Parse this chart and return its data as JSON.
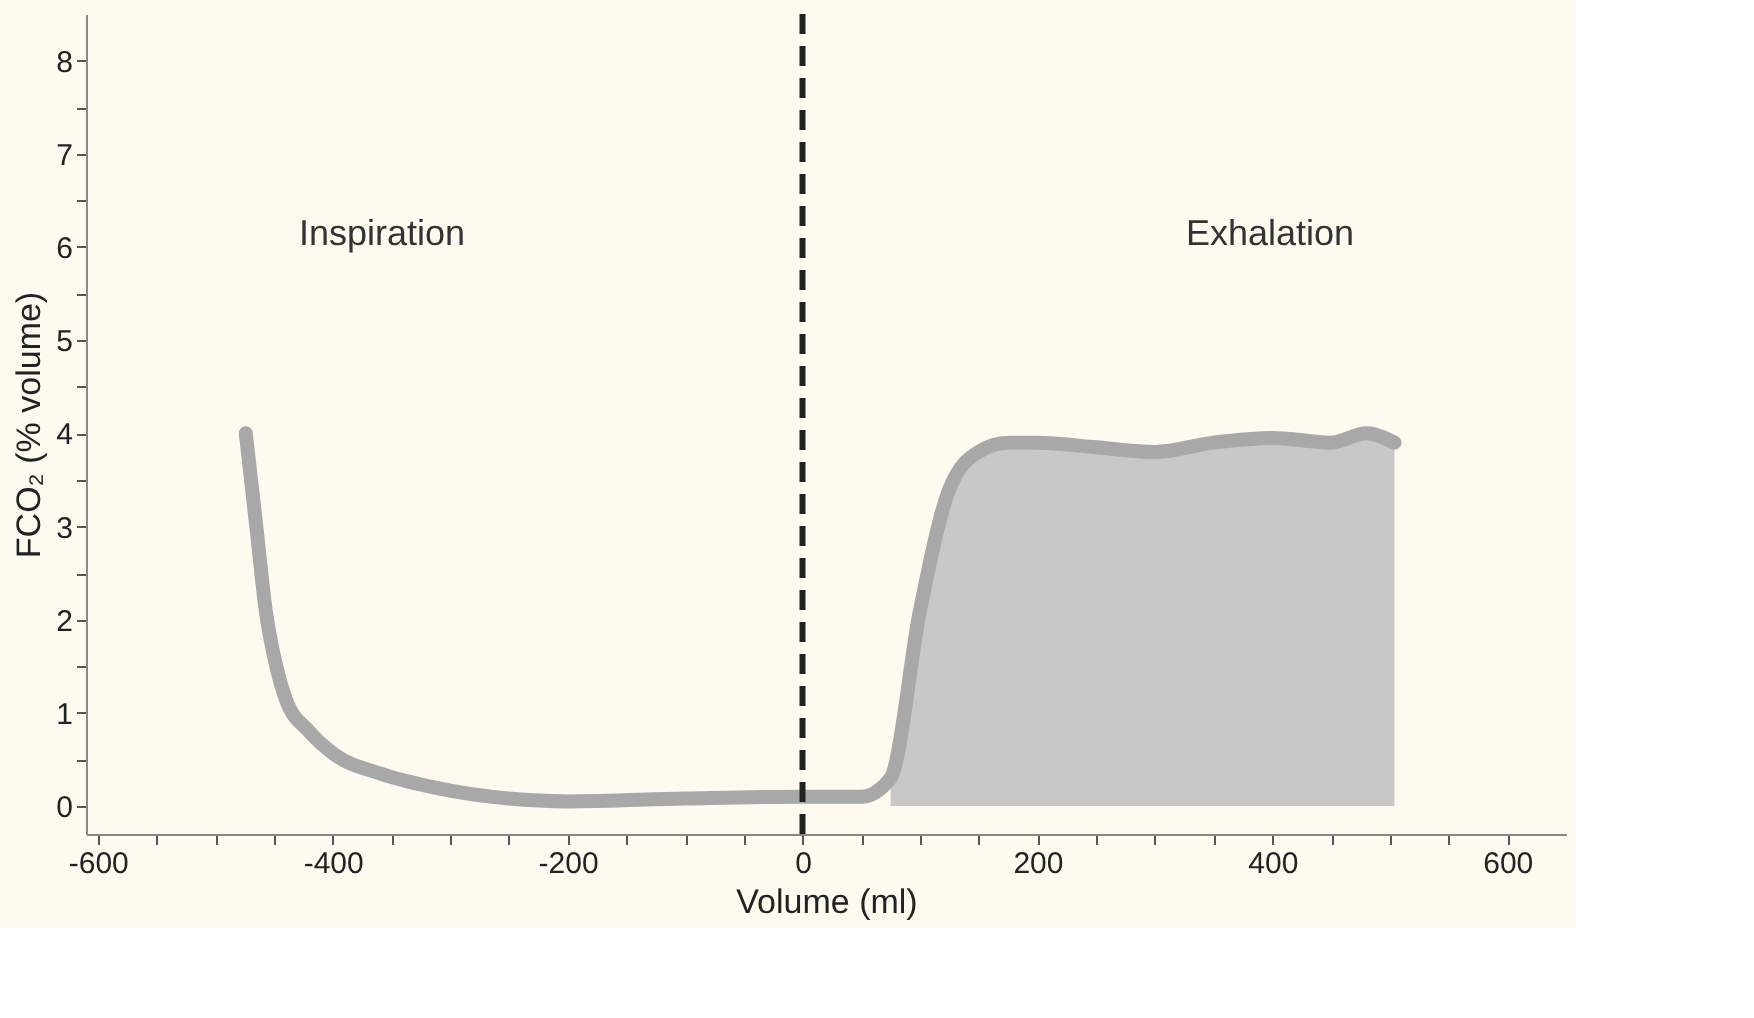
{
  "chart_data": {
    "type": "line",
    "xlabel": "Volume (ml)",
    "ylabel": "FCO₂ (% volume)",
    "series": [
      {
        "type": "area",
        "color": "#c8c8c8",
        "x": [
          75,
          100,
          125,
          150,
          175,
          200,
          250,
          300,
          350,
          400,
          450,
          480,
          504
        ],
        "values": [
          0.3,
          2.1,
          3.4,
          3.8,
          3.9,
          3.9,
          3.85,
          3.8,
          3.9,
          3.95,
          3.9,
          4.0,
          3.9
        ]
      },
      {
        "color": "#a8a8a8",
        "x": [
          -474,
          -465,
          -457,
          -448,
          -440,
          -420,
          -398,
          -360,
          -314,
          -250,
          -200,
          -100,
          0,
          50,
          75,
          100,
          125,
          150,
          175,
          200,
          250,
          300,
          350,
          400,
          450,
          480,
          504
        ],
        "values": [
          4.0,
          3.0,
          2.1,
          1.5,
          1.15,
          0.8,
          0.55,
          0.35,
          0.2,
          0.08,
          0.05,
          0.08,
          0.1,
          0.1,
          0.3,
          2.1,
          3.4,
          3.8,
          3.9,
          3.9,
          3.85,
          3.8,
          3.9,
          3.95,
          3.9,
          4.0,
          3.9
        ]
      }
    ],
    "xlim": [
      -610,
      650
    ],
    "xticks": [
      -600,
      {
        "value": -550,
        "label": null
      },
      {
        "value": -500,
        "label": null
      },
      {
        "value": -450,
        "label": null
      },
      -400,
      {
        "value": -350,
        "label": null
      },
      {
        "value": -300,
        "label": null
      },
      {
        "value": -250,
        "label": null
      },
      -200,
      {
        "value": -150,
        "label": null
      },
      {
        "value": -100,
        "label": null
      },
      {
        "value": -50,
        "label": null
      },
      0,
      {
        "value": 50,
        "label": null
      },
      {
        "value": 100,
        "label": null
      },
      {
        "value": 150,
        "label": null
      },
      200,
      {
        "value": 250,
        "label": null
      },
      {
        "value": 300,
        "label": null
      },
      {
        "value": 350,
        "label": null
      },
      400,
      {
        "value": 450,
        "label": null
      },
      {
        "value": 500,
        "label": null
      },
      {
        "value": 550,
        "label": null
      },
      600
    ],
    "ylim": [
      -0.3,
      8.5
    ],
    "yticks": [
      0,
      {
        "value": 0.5,
        "label": null
      },
      1,
      {
        "value": 1.5,
        "label": null
      },
      2,
      {
        "value": 2.5,
        "label": null
      },
      3,
      {
        "value": 3.5,
        "label": null
      },
      4,
      {
        "value": 4.5,
        "label": null
      },
      5,
      {
        "value": 5.5,
        "label": null
      },
      6,
      {
        "value": 6.5,
        "label": null
      },
      7,
      {
        "value": 7.5,
        "label": null
      },
      8
    ],
    "ref_lines": [
      {
        "axis": "x",
        "value": 0,
        "color": "#222222",
        "line_style": "dashed"
      }
    ],
    "annotations": [
      "Inspiration",
      "Exhalation"
    ],
    "grid": false
  }
}
